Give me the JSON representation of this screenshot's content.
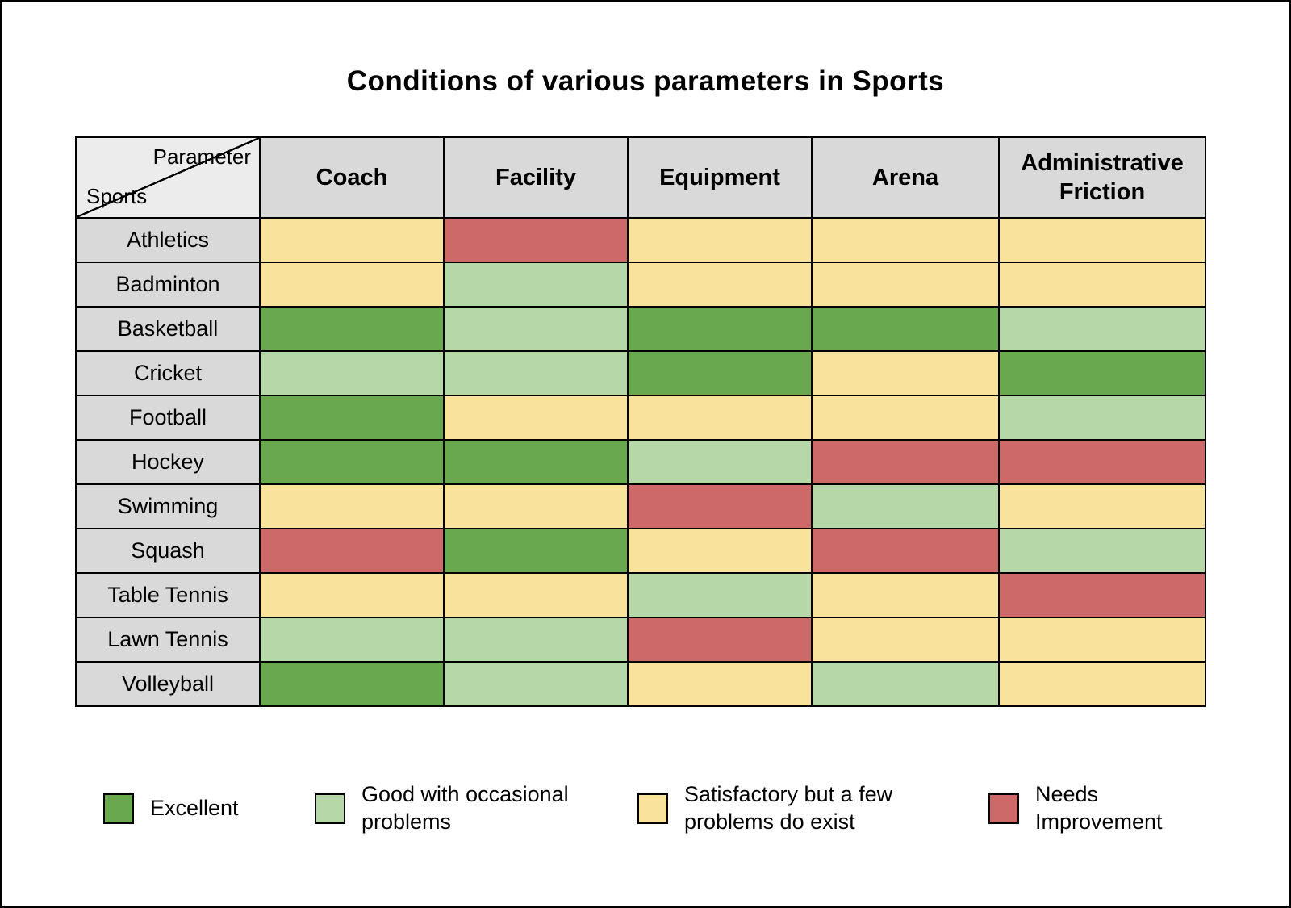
{
  "title": "Conditions of various parameters in Sports",
  "chart_data": {
    "type": "heatmap",
    "title": "Conditions of various parameters in Sports",
    "corner": {
      "top_label": "Parameter",
      "bottom_label": "Sports"
    },
    "columns": [
      "Coach",
      "Facility",
      "Equipment",
      "Arena",
      "Administrative Friction"
    ],
    "rows": [
      "Athletics",
      "Badminton",
      "Basketball",
      "Cricket",
      "Football",
      "Hockey",
      "Swimming",
      "Squash",
      "Table Tennis",
      "Lawn Tennis",
      "Volleyball"
    ],
    "ratings": {
      "excellent": {
        "label": "Excellent",
        "color": "#6aa84f"
      },
      "good": {
        "label": "Good with occasional problems",
        "color": "#b6d7a8"
      },
      "satisfactory": {
        "label": "Satisfactory but a few problems do exist",
        "color": "#f9e29b"
      },
      "needs_improvement": {
        "label": "Needs Improvement",
        "color": "#cd6968"
      }
    },
    "legend_order": [
      "excellent",
      "good",
      "satisfactory",
      "needs_improvement"
    ],
    "values": [
      [
        "satisfactory",
        "needs_improvement",
        "satisfactory",
        "satisfactory",
        "satisfactory"
      ],
      [
        "satisfactory",
        "good",
        "satisfactory",
        "satisfactory",
        "satisfactory"
      ],
      [
        "excellent",
        "good",
        "excellent",
        "excellent",
        "good"
      ],
      [
        "good",
        "good",
        "excellent",
        "satisfactory",
        "excellent"
      ],
      [
        "excellent",
        "satisfactory",
        "satisfactory",
        "satisfactory",
        "good"
      ],
      [
        "excellent",
        "excellent",
        "good",
        "needs_improvement",
        "needs_improvement"
      ],
      [
        "satisfactory",
        "satisfactory",
        "needs_improvement",
        "good",
        "satisfactory"
      ],
      [
        "needs_improvement",
        "excellent",
        "satisfactory",
        "needs_improvement",
        "good"
      ],
      [
        "satisfactory",
        "satisfactory",
        "good",
        "satisfactory",
        "needs_improvement"
      ],
      [
        "good",
        "good",
        "needs_improvement",
        "satisfactory",
        "satisfactory"
      ],
      [
        "excellent",
        "good",
        "satisfactory",
        "good",
        "satisfactory"
      ]
    ]
  }
}
